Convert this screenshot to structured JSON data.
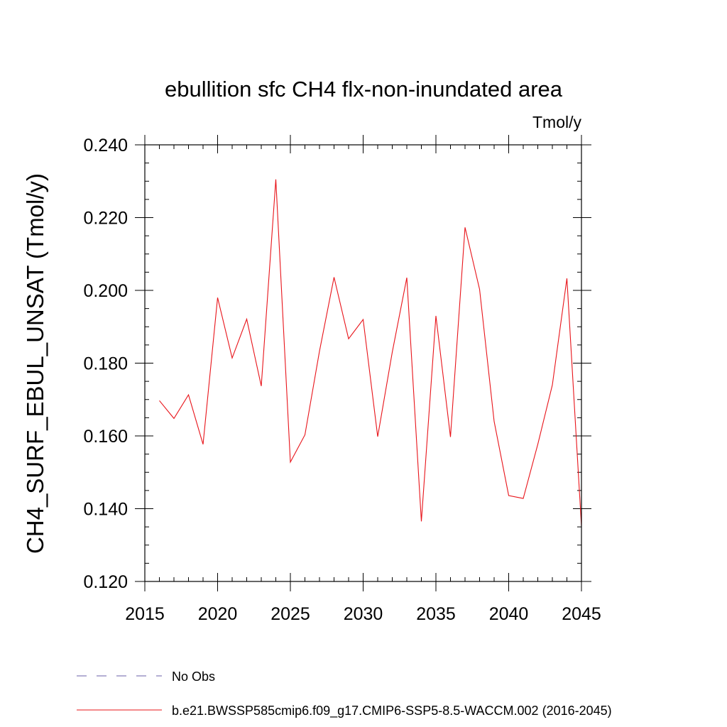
{
  "chart_data": {
    "type": "line",
    "title": "ebullition sfc CH4 flx-non-inundated area",
    "units": "Tmol/y",
    "xlabel": "",
    "ylabel": "CH4_SURF_EBUL_UNSAT  (Tmol/y)",
    "xlim": [
      2015,
      2045
    ],
    "ylim": [
      0.12,
      0.24
    ],
    "x_ticks": [
      "2015",
      "2020",
      "2025",
      "2030",
      "2035",
      "2040",
      "2045"
    ],
    "y_ticks": [
      "0.120",
      "0.140",
      "0.160",
      "0.180",
      "0.200",
      "0.220",
      "0.240"
    ],
    "grid": false,
    "legend_position": "bottom",
    "series": [
      {
        "name": "No Obs",
        "color": "#6a5fa8",
        "dash": "dashed",
        "x": [],
        "values": []
      },
      {
        "name": "b.e21.BWSSP585cmip6.f09_g17.CMIP6-SSP5-8.5-WACCM.002 (2016-2045)",
        "color": "#e8141a",
        "dash": "solid",
        "x": [
          2016,
          2017,
          2018,
          2019,
          2020,
          2021,
          2022,
          2023,
          2024,
          2025,
          2026,
          2027,
          2028,
          2029,
          2030,
          2031,
          2032,
          2033,
          2034,
          2035,
          2036,
          2037,
          2038,
          2039,
          2040,
          2041,
          2042,
          2043,
          2044,
          2045
        ],
        "values": [
          0.1697,
          0.1648,
          0.1713,
          0.1577,
          0.198,
          0.1814,
          0.1921,
          0.1737,
          0.2305,
          0.1528,
          0.1603,
          0.1833,
          0.2036,
          0.1867,
          0.192,
          0.1598,
          0.183,
          0.2035,
          0.1365,
          0.193,
          0.1597,
          0.2173,
          0.2003,
          0.164,
          0.1436,
          0.1428,
          0.1577,
          0.174,
          0.2033,
          0.1352
        ]
      }
    ]
  }
}
